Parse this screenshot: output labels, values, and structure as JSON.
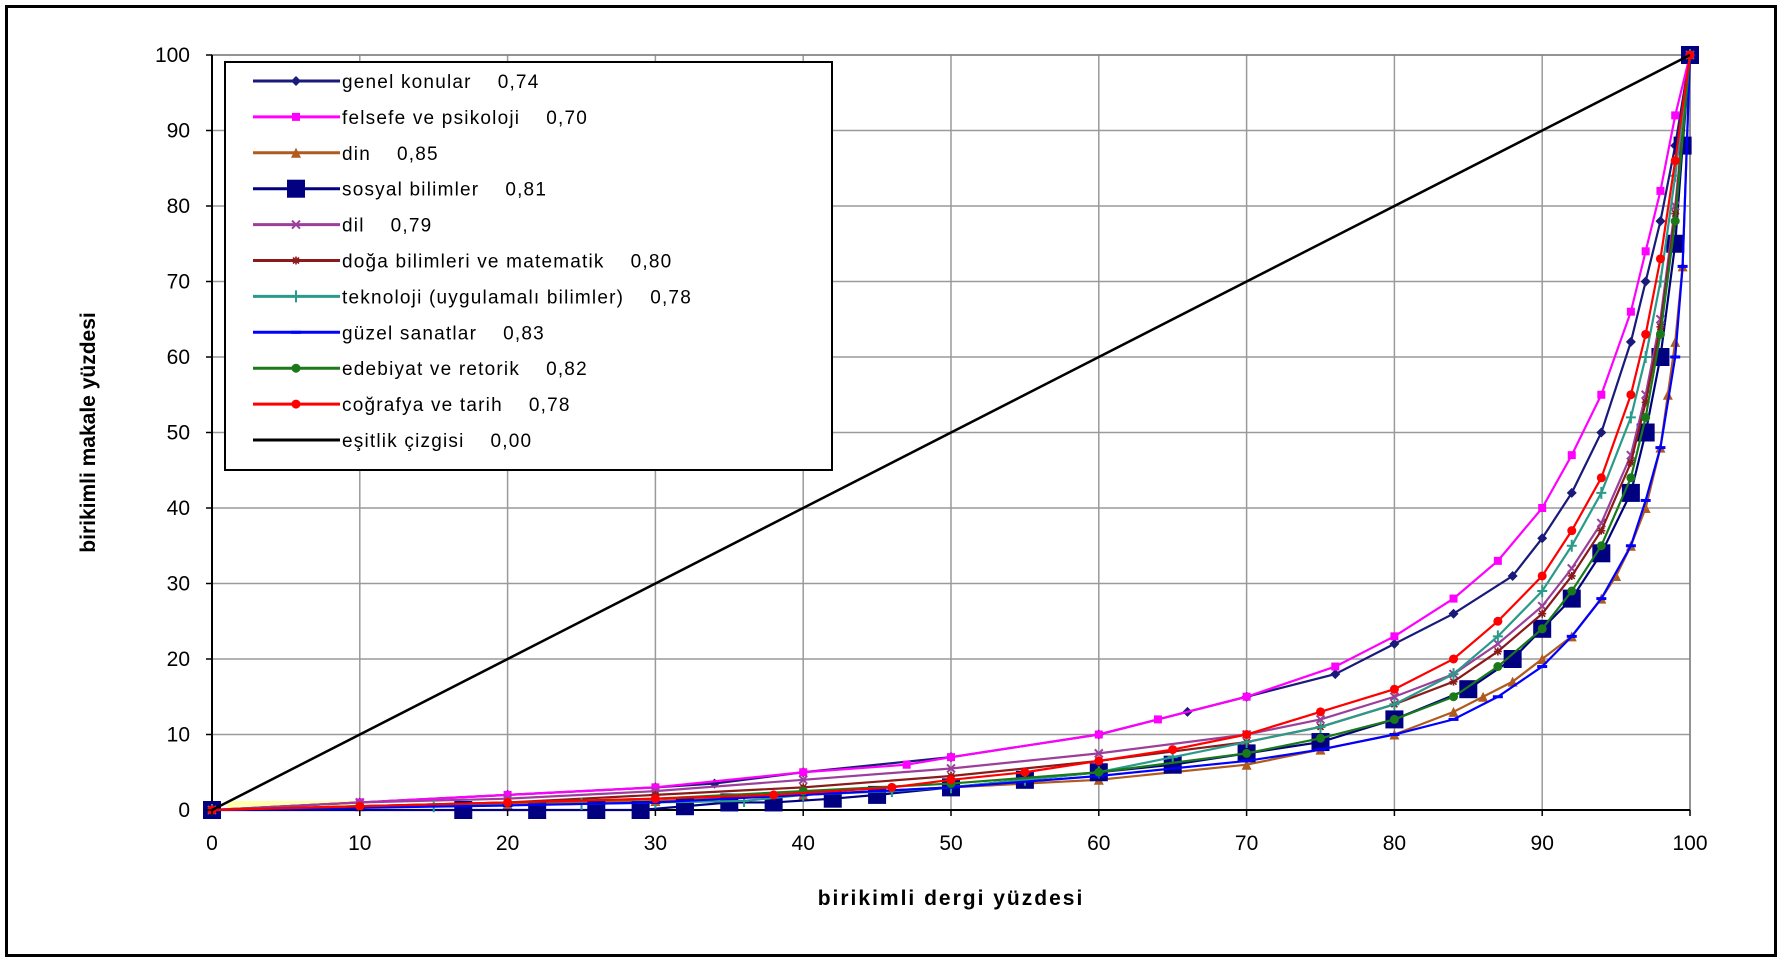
{
  "chart_data": {
    "type": "line",
    "xlabel": "birikimli dergi yüzdesi",
    "ylabel": "birikimli makale yüzdesi",
    "xlim": [
      0,
      100
    ],
    "ylim": [
      0,
      100
    ],
    "x_ticks": [
      "0",
      "10",
      "20",
      "30",
      "40",
      "50",
      "60",
      "70",
      "80",
      "90",
      "100"
    ],
    "y_ticks": [
      "0",
      "10",
      "20",
      "30",
      "40",
      "50",
      "60",
      "70",
      "80",
      "90",
      "100"
    ],
    "grid": true,
    "legend_position": "top-left",
    "series": [
      {
        "name": "genel konular",
        "gini": "0,74",
        "color": "#1a1a7a",
        "marker": "diamond",
        "x": [
          0,
          10,
          20,
          30,
          34,
          40,
          50,
          60,
          66,
          70,
          76,
          80,
          84,
          88,
          90,
          92,
          94,
          96,
          97,
          98,
          99,
          100
        ],
        "y": [
          0,
          1,
          2,
          3,
          3.5,
          5,
          7,
          10,
          13,
          15,
          18,
          22,
          26,
          31,
          36,
          42,
          50,
          62,
          70,
          78,
          88,
          100
        ]
      },
      {
        "name": "felsefe ve psikoloji",
        "gini": "0,70",
        "color": "#ff00ff",
        "marker": "square",
        "x": [
          0,
          10,
          20,
          30,
          40,
          47,
          50,
          60,
          64,
          70,
          76,
          80,
          84,
          87,
          90,
          92,
          94,
          96,
          97,
          98,
          99,
          100
        ],
        "y": [
          0,
          1,
          2,
          3,
          5,
          6,
          7,
          10,
          12,
          15,
          19,
          23,
          28,
          33,
          40,
          47,
          55,
          66,
          74,
          82,
          92,
          100
        ]
      },
      {
        "name": "din",
        "gini": "0,85",
        "color": "#b05a1e",
        "marker": "triangle",
        "x": [
          0,
          10,
          20,
          30,
          40,
          50,
          60,
          70,
          75,
          80,
          84,
          86,
          88,
          90,
          92,
          94,
          95,
          96,
          97,
          98,
          98.5,
          99,
          99.5,
          100
        ],
        "y": [
          0,
          0.5,
          0.8,
          1.2,
          2,
          3,
          4,
          6,
          8,
          10,
          13,
          15,
          17,
          20,
          23,
          28,
          31,
          35,
          40,
          48,
          55,
          62,
          72,
          100
        ]
      },
      {
        "name": "sosyal bilimler",
        "gini": "0,81",
        "color": "#000080",
        "marker": "bigsquare",
        "x": [
          0,
          17,
          22,
          26,
          29,
          32,
          35,
          38,
          42,
          45,
          50,
          55,
          60,
          65,
          70,
          75,
          80,
          85,
          88,
          90,
          92,
          94,
          96,
          97,
          98,
          99,
          99.5,
          100
        ],
        "y": [
          0,
          0,
          0,
          0,
          0,
          0.5,
          1,
          1,
          1.5,
          2,
          3,
          4,
          5,
          6,
          7.5,
          9,
          12,
          16,
          20,
          24,
          28,
          34,
          42,
          50,
          60,
          75,
          88,
          100
        ]
      },
      {
        "name": "dil",
        "gini": "0,79",
        "color": "#9b3f9b",
        "marker": "x",
        "x": [
          0,
          10,
          20,
          30,
          40,
          50,
          60,
          70,
          75,
          80,
          84,
          87,
          90,
          92,
          94,
          96,
          97,
          98,
          99,
          100
        ],
        "y": [
          0,
          1,
          1.5,
          2.5,
          4,
          5.5,
          7.5,
          10,
          12,
          15,
          18,
          22,
          27,
          32,
          38,
          47,
          55,
          65,
          80,
          100
        ]
      },
      {
        "name": "doğa bilimleri ve matematik",
        "gini": "0,80",
        "color": "#8b1a1a",
        "marker": "star",
        "x": [
          0,
          10,
          20,
          30,
          40,
          50,
          60,
          70,
          75,
          80,
          84,
          87,
          90,
          92,
          94,
          96,
          97,
          98,
          99,
          100
        ],
        "y": [
          0,
          0.5,
          1,
          2,
          3,
          4.5,
          6.5,
          9,
          11,
          14,
          17,
          21,
          26,
          31,
          37,
          46,
          54,
          64,
          79,
          100
        ]
      },
      {
        "name": "teknoloji (uygulamalı bilimler)",
        "gini": "0,78",
        "color": "#2a9a8a",
        "marker": "plus",
        "x": [
          0,
          15,
          25,
          30,
          36,
          40,
          46,
          50,
          55,
          60,
          65,
          70,
          75,
          80,
          84,
          87,
          90,
          92,
          94,
          96,
          97,
          98,
          99,
          100
        ],
        "y": [
          0,
          0.5,
          0.8,
          1,
          1.2,
          2,
          2.5,
          3,
          4,
          5,
          7,
          9,
          11,
          14,
          18,
          23,
          29,
          35,
          42,
          52,
          60,
          70,
          84,
          100
        ]
      },
      {
        "name": "güzel sanatlar",
        "gini": "0,83",
        "color": "#0000ff",
        "marker": "dash",
        "x": [
          0,
          10,
          20,
          30,
          40,
          50,
          60,
          70,
          75,
          80,
          84,
          87,
          90,
          92,
          94,
          96,
          97,
          98,
          99,
          99.5,
          100
        ],
        "y": [
          0,
          0.3,
          0.6,
          1,
          2,
          3,
          4.5,
          6.5,
          8,
          10,
          12,
          15,
          19,
          23,
          28,
          35,
          41,
          48,
          60,
          72,
          100
        ]
      },
      {
        "name": "edebiyat ve retorik",
        "gini": "0,82",
        "color": "#1a7a1a",
        "marker": "circle",
        "x": [
          0,
          10,
          20,
          30,
          40,
          50,
          60,
          70,
          75,
          80,
          84,
          87,
          90,
          92,
          94,
          96,
          97,
          98,
          99,
          100
        ],
        "y": [
          0,
          0.5,
          1,
          1.5,
          2.5,
          3.5,
          5,
          7.5,
          9.5,
          12,
          15,
          19,
          24,
          29,
          35,
          44,
          52,
          63,
          78,
          100
        ]
      },
      {
        "name": "coğrafya ve tarih",
        "gini": "0,78",
        "color": "#ff0000",
        "marker": "circle",
        "x": [
          0,
          10,
          20,
          30,
          38,
          46,
          50,
          55,
          60,
          65,
          70,
          75,
          80,
          84,
          87,
          90,
          92,
          94,
          96,
          97,
          98,
          99,
          100
        ],
        "y": [
          0,
          0.5,
          1,
          1.5,
          2,
          3,
          4,
          5,
          6.5,
          8,
          10,
          13,
          16,
          20,
          25,
          31,
          37,
          44,
          55,
          63,
          73,
          86,
          100
        ]
      },
      {
        "name": "eşitlik çizgisi",
        "gini": "0,00",
        "color": "#000000",
        "marker": "none",
        "x": [
          0,
          100
        ],
        "y": [
          0,
          100
        ]
      }
    ]
  }
}
